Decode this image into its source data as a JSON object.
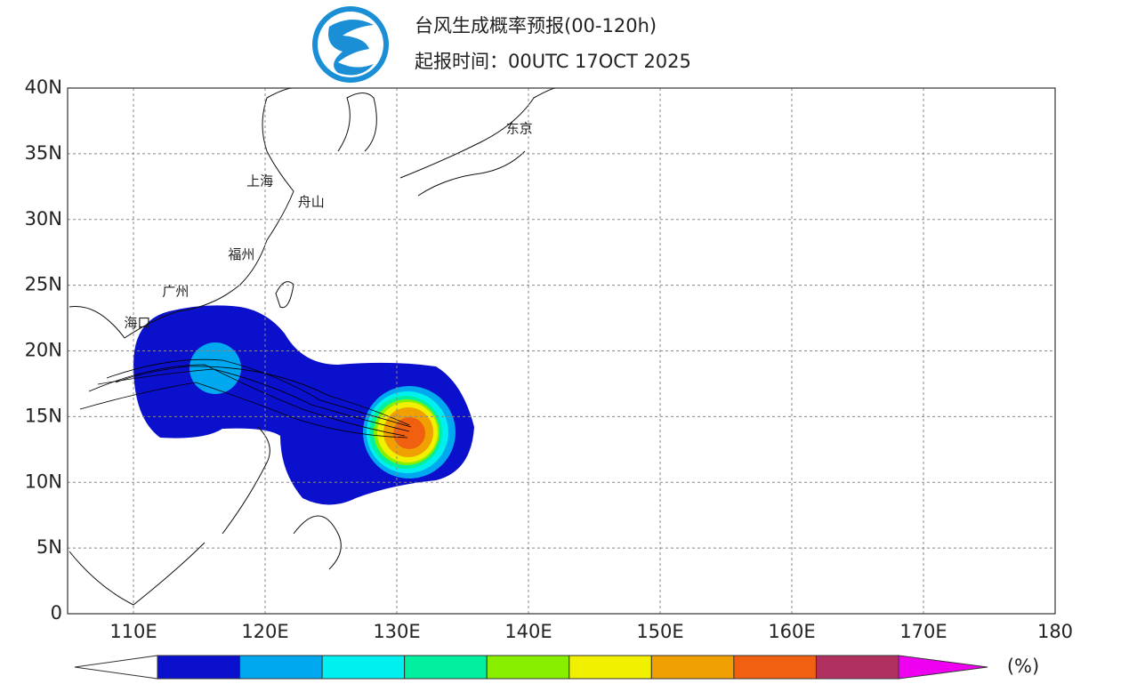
{
  "header": {
    "title": "台风生成概率预报(00-120h)",
    "subtitle": "起报时间：00UTC 17OCT 2025"
  },
  "map": {
    "xlim": [
      105,
      180
    ],
    "ylim": [
      0,
      40
    ],
    "xticks": [
      {
        "value": 110,
        "label": "110E"
      },
      {
        "value": 120,
        "label": "120E"
      },
      {
        "value": 130,
        "label": "130E"
      },
      {
        "value": 140,
        "label": "140E"
      },
      {
        "value": 150,
        "label": "150E"
      },
      {
        "value": 160,
        "label": "160E"
      },
      {
        "value": 170,
        "label": "170E"
      },
      180
    ],
    "yticks": [
      0,
      {
        "value": 5,
        "label": "5N"
      },
      {
        "value": 10,
        "label": "10N"
      },
      {
        "value": 15,
        "label": "15N"
      },
      {
        "value": 20,
        "label": "20N"
      },
      {
        "value": 25,
        "label": "25N"
      },
      {
        "value": 30,
        "label": "30N"
      },
      {
        "value": 35,
        "label": "35N"
      },
      {
        "value": 40,
        "label": "40N"
      }
    ],
    "grid": true,
    "cities": [
      {
        "label": "东京",
        "lon": 139.3,
        "lat": 36.9
      },
      {
        "label": "上海",
        "lon": 119.6,
        "lat": 32.9
      },
      {
        "label": "舟山",
        "lon": 123.5,
        "lat": 31.3
      },
      {
        "label": "福州",
        "lon": 118.2,
        "lat": 27.3
      },
      {
        "label": "广州",
        "lon": 113.2,
        "lat": 24.5
      },
      {
        "label": "海口",
        "lon": 110.3,
        "lat": 22.1
      }
    ]
  },
  "colorbar": {
    "colors": [
      "#0a10cc",
      "#00a8f0",
      "#00f0f0",
      "#00f0a0",
      "#88ee00",
      "#f0f000",
      "#f0a000",
      "#f06010",
      "#b03060",
      "#f000f0"
    ],
    "unit_label": "(%)"
  }
}
